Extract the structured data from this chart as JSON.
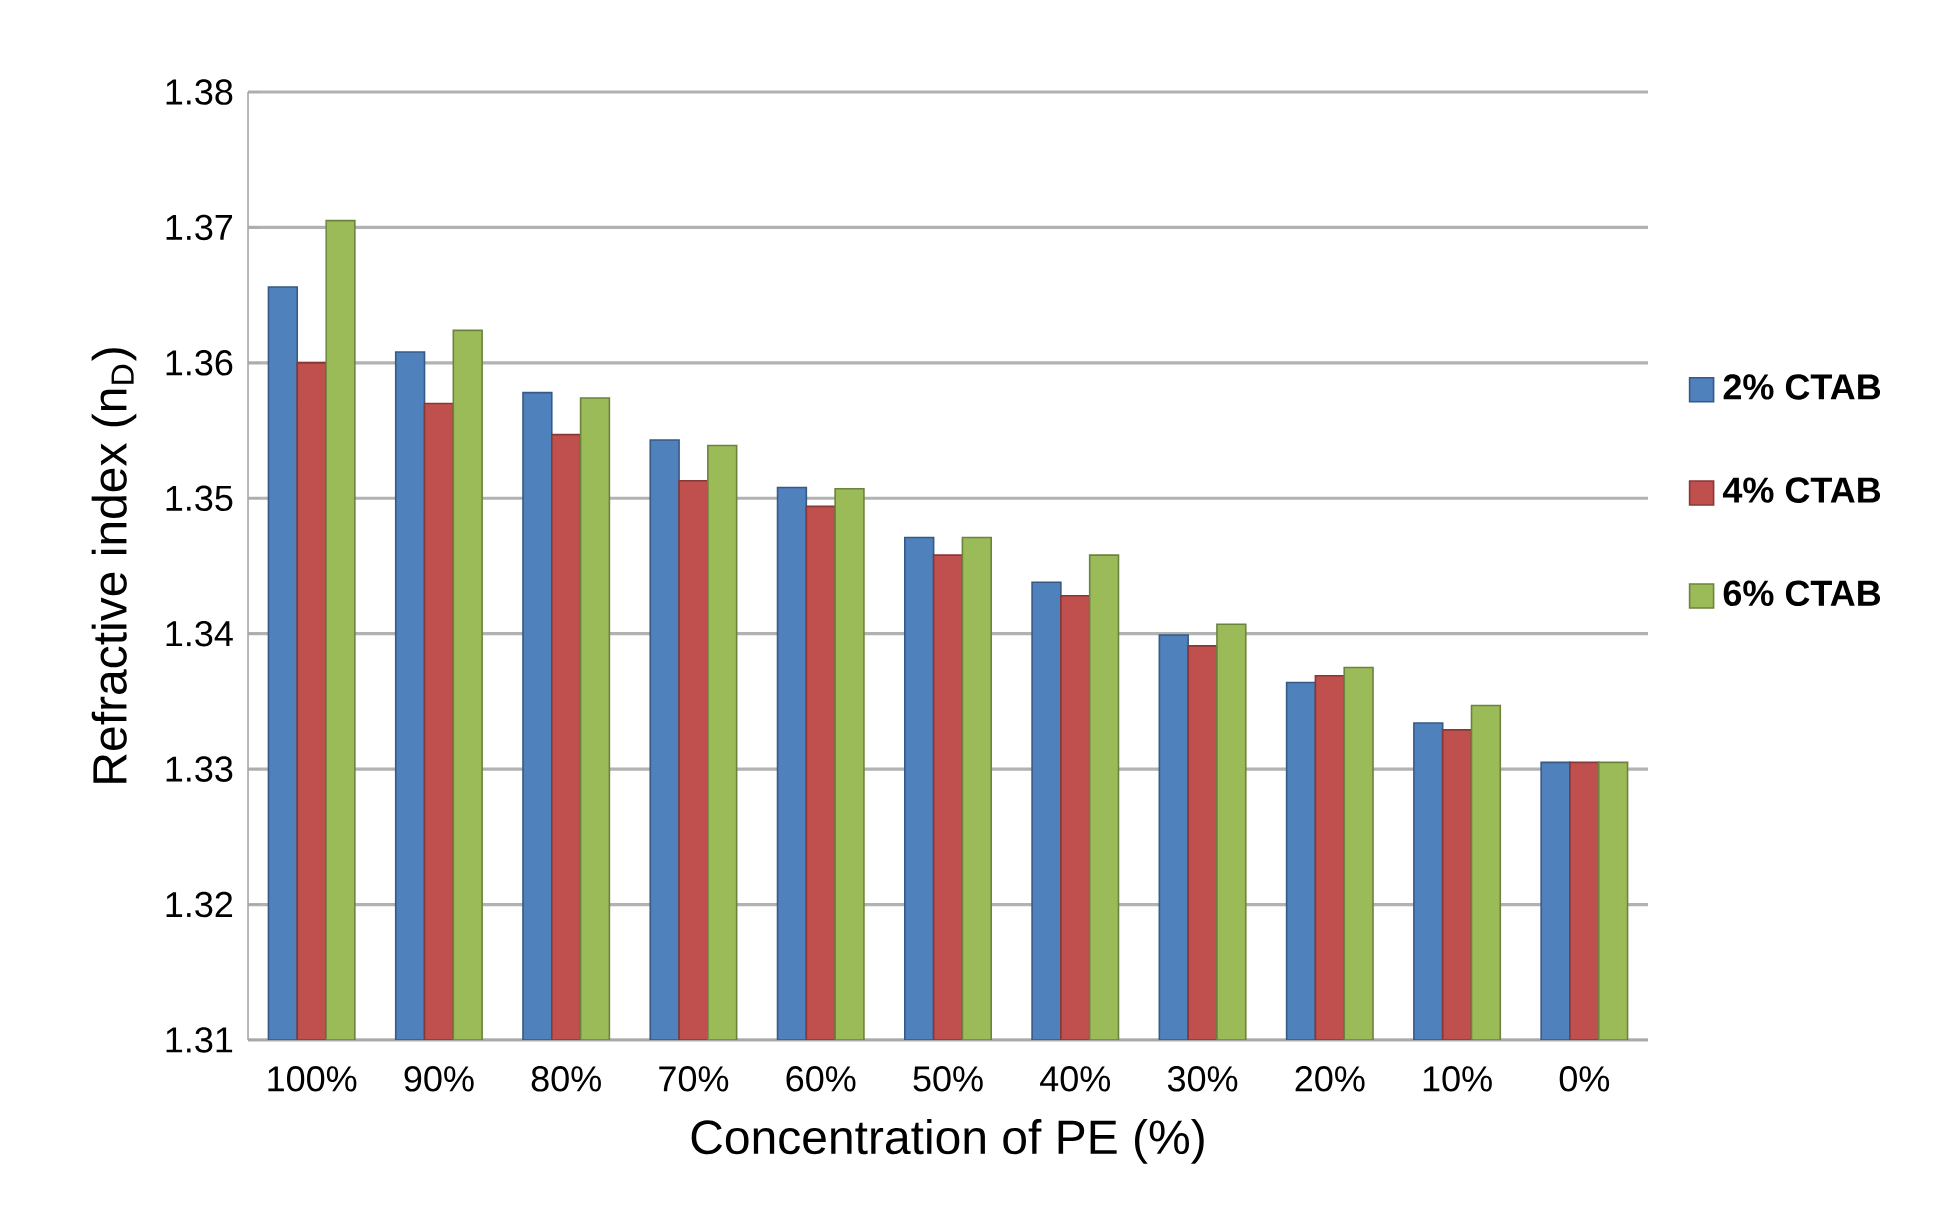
{
  "chart_data": {
    "type": "bar",
    "xlabel": "Concentration of PE (%)",
    "ylabel": "Refractive index (n$_{D}$)",
    "categories": [
      "100%",
      "90%",
      "80%",
      "70%",
      "60%",
      "50%",
      "40%",
      "30%",
      "20%",
      "10%",
      "0%"
    ],
    "series": [
      {
        "name": "2% CTAB",
        "color": "#4f81bd",
        "values": [
          1.3656,
          1.3608,
          1.3578,
          1.3543,
          1.3508,
          1.3471,
          1.3438,
          1.3399,
          1.3364,
          1.3334,
          1.3305
        ]
      },
      {
        "name": "4% CTAB",
        "color": "#c0504d",
        "values": [
          1.36,
          1.357,
          1.3547,
          1.3513,
          1.3494,
          1.3458,
          1.3428,
          1.3391,
          1.3369,
          1.3329,
          1.3305
        ]
      },
      {
        "name": "6% CTAB",
        "color": "#9bbb59",
        "values": [
          1.3705,
          1.3624,
          1.3574,
          1.3539,
          1.3507,
          1.3471,
          1.3458,
          1.3407,
          1.3375,
          1.3347,
          1.3305
        ]
      }
    ],
    "ylim": [
      1.31,
      1.38
    ],
    "yticks": [
      1.31,
      1.32,
      1.33,
      1.34,
      1.35,
      1.36,
      1.37,
      1.38
    ],
    "grid": "y",
    "legend": "right"
  }
}
